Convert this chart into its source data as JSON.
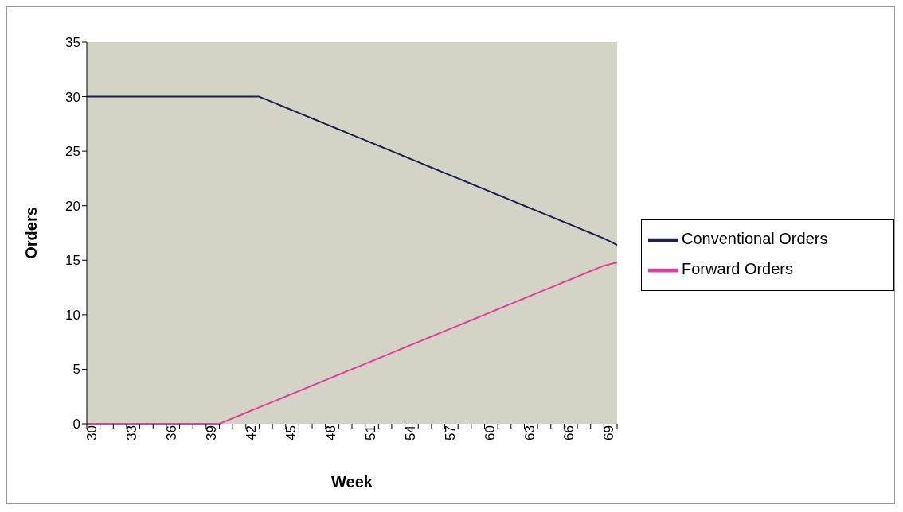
{
  "chart_data": {
    "type": "line",
    "xlabel": "Week",
    "ylabel": "Orders",
    "categories": [
      "30",
      null,
      null,
      "33",
      null,
      null,
      "36",
      null,
      null,
      "39",
      null,
      null,
      "42",
      null,
      null,
      "45",
      null,
      null,
      "48",
      null,
      null,
      "51",
      null,
      null,
      "54",
      null,
      null,
      "57",
      null,
      null,
      "60",
      null,
      null,
      "63",
      null,
      null,
      "66",
      null,
      null,
      "69",
      null
    ],
    "series": [
      {
        "name": "Conventional Orders",
        "color": "#1f2050",
        "values": [
          30,
          30,
          30,
          30,
          30,
          30,
          30,
          30,
          30,
          30,
          30,
          30,
          30,
          30,
          29.5,
          29,
          28.5,
          28,
          27.5,
          27,
          26.5,
          26,
          25.5,
          25,
          24.5,
          24,
          23.5,
          23,
          22.5,
          22,
          21.5,
          21,
          20.5,
          20,
          19.5,
          19,
          18.5,
          18,
          17.5,
          17,
          16.4
        ]
      },
      {
        "name": "Forward Orders",
        "color": "#e0409a",
        "values": [
          0,
          0,
          0,
          0,
          0,
          0,
          0,
          0,
          0,
          0,
          0,
          0.5,
          1,
          1.5,
          2,
          2.5,
          3,
          3.5,
          4,
          4.5,
          5,
          5.5,
          6,
          6.5,
          7,
          7.5,
          8,
          8.5,
          9,
          9.5,
          10,
          10.5,
          11,
          11.5,
          12,
          12.5,
          13,
          13.5,
          14,
          14.5,
          14.8
        ]
      }
    ],
    "ylim": [
      0,
      35
    ],
    "yticks": [
      0,
      5,
      10,
      15,
      20,
      25,
      30,
      35
    ],
    "grid": false,
    "legend": "right",
    "marker": "none",
    "line_style": "solid"
  }
}
